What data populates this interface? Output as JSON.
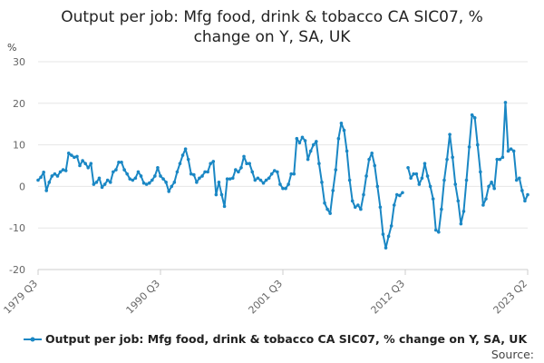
{
  "chart_data": {
    "type": "line",
    "title_lines": [
      "Output per job: Mfg food, drink & tobacco CA SIC07, %",
      "change on Y, SA, UK"
    ],
    "unit_label": "%",
    "y_ticks": [
      "30",
      "20",
      "10",
      "0",
      "-10",
      "-20"
    ],
    "ylim": [
      -20,
      30
    ],
    "x_ticks": [
      "1979 Q3",
      "1990 Q3",
      "2001 Q3",
      "2012 Q3",
      "2023 Q2"
    ],
    "grid": "horizontal",
    "legend_position": "bottom",
    "source_label": "Source:",
    "series": [
      {
        "name": "Output per job: Mfg food, drink & tobacco CA SIC07, % change on Y, SA, UK",
        "color": "#1a87c4",
        "values": [
          1.5,
          2.2,
          3.4,
          -1.0,
          1.0,
          2.5,
          3.0,
          2.5,
          3.5,
          4.0,
          3.8,
          8.0,
          7.5,
          7.0,
          7.2,
          5.0,
          6.2,
          5.5,
          4.5,
          5.5,
          0.5,
          1.0,
          2.0,
          -0.2,
          0.5,
          1.5,
          1.0,
          3.5,
          4.0,
          5.8,
          5.8,
          4.0,
          3.0,
          1.8,
          1.5,
          2.0,
          3.5,
          2.5,
          0.8,
          0.5,
          0.8,
          1.5,
          2.5,
          4.5,
          2.5,
          1.8,
          1.0,
          -1.2,
          0.0,
          1.0,
          3.5,
          5.5,
          7.5,
          9.0,
          6.5,
          3.0,
          2.8,
          1.0,
          2.0,
          2.5,
          3.5,
          3.5,
          5.5,
          6.0,
          -2.0,
          1.0,
          -2.0,
          -4.8,
          1.8,
          1.8,
          2.0,
          4.0,
          3.5,
          4.5,
          7.2,
          5.5,
          5.5,
          3.5,
          1.5,
          2.0,
          1.5,
          0.8,
          1.5,
          2.0,
          3.0,
          3.8,
          3.5,
          0.5,
          -0.5,
          -0.5,
          0.5,
          3.0,
          3.0,
          11.5,
          10.5,
          11.8,
          11.0,
          6.5,
          8.5,
          10.0,
          10.8,
          5.5,
          1.0,
          -4.0,
          -5.5,
          -6.5,
          -1.0,
          4.0,
          11.5,
          15.2,
          13.5,
          8.5,
          1.5,
          -3.5,
          -5.0,
          -4.5,
          -5.5,
          -2.0,
          2.5,
          6.5,
          8.0,
          5.0,
          0.0,
          -5.0,
          -11.5,
          -14.8,
          -12.0,
          -9.5,
          -4.5,
          -2.0,
          -2.2,
          -1.5,
          null,
          4.5,
          2.0,
          3.0,
          3.0,
          0.5,
          2.0,
          5.5,
          2.5,
          0.0,
          -3.0,
          -10.5,
          -11.0,
          -5.5,
          1.5,
          6.5,
          12.5,
          7.0,
          0.5,
          -3.5,
          -9.0,
          -6.0,
          1.5,
          9.5,
          17.2,
          16.5,
          10.0,
          3.5,
          -4.5,
          -3.0,
          0.0,
          1.0,
          -0.5,
          6.5,
          6.5,
          7.0,
          20.2,
          8.5,
          9.0,
          8.5,
          1.5,
          2.0,
          -1.0,
          -3.5,
          -2.0
        ]
      }
    ]
  }
}
